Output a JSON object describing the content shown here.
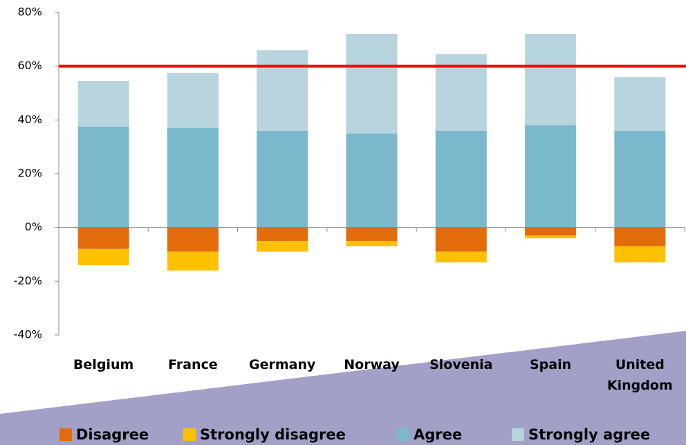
{
  "chart_data": {
    "type": "stacked_bar",
    "categories": [
      "Belgium",
      "France",
      "Germany",
      "Norway",
      "Slovenia",
      "Spain",
      "United Kingdom"
    ],
    "series": [
      {
        "name": "Disagree",
        "color": "#e36c0a",
        "values": [
          -8,
          -9,
          -5,
          -5,
          -9,
          -3,
          -7
        ]
      },
      {
        "name": "Strongly disagree",
        "color": "#ffc000",
        "values": [
          -6,
          -7,
          -4,
          -2,
          -4,
          -1,
          -6
        ]
      },
      {
        "name": "Agree",
        "color": "#7ab8cc",
        "values": [
          37.5,
          37,
          36,
          35,
          36,
          38,
          36
        ]
      },
      {
        "name": "Strongly agree",
        "color": "#b7d4df",
        "values": [
          17,
          20.5,
          30,
          37,
          28.5,
          34,
          20
        ]
      }
    ],
    "reference_line": {
      "value": 60,
      "color": "#ff0000"
    },
    "ylim": [
      -40,
      80
    ],
    "yticks": [
      {
        "value": -40,
        "label": "-40%"
      },
      {
        "value": -20,
        "label": "-20%"
      },
      {
        "value": 0,
        "label": "0%"
      },
      {
        "value": 20,
        "label": "20%"
      },
      {
        "value": 40,
        "label": "40%"
      },
      {
        "value": 60,
        "label": "60%"
      },
      {
        "value": 80,
        "label": "80%"
      }
    ],
    "legend": "bottom"
  }
}
